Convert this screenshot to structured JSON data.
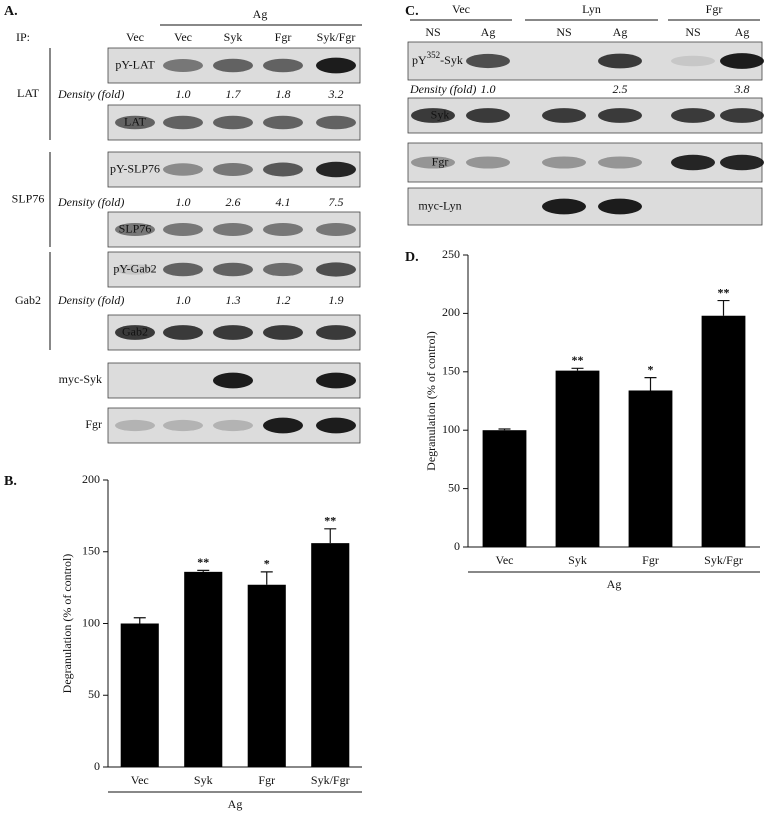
{
  "panel_a": {
    "label": "A.",
    "ip_label": "IP:",
    "treatment": "Ag",
    "lanes": [
      "Vec",
      "Vec",
      "Syk",
      "Fgr",
      "Syk/Fgr"
    ],
    "groups": [
      {
        "name": "LAT",
        "phospho_blot": "pY-LAT",
        "density_label": "Density (fold)",
        "densities": [
          "1.0",
          "1.7",
          "1.8",
          "3.2"
        ],
        "total_blot": "LAT"
      },
      {
        "name": "SLP76",
        "phospho_blot": "pY-SLP76",
        "density_label": "Density (fold)",
        "densities": [
          "1.0",
          "2.6",
          "4.1",
          "7.5"
        ],
        "total_blot": "SLP76"
      },
      {
        "name": "Gab2",
        "phospho_blot": "pY-Gab2",
        "density_label": "Density (fold)",
        "densities": [
          "1.0",
          "1.3",
          "1.2",
          "1.9"
        ],
        "total_blot": "Gab2"
      }
    ],
    "other_blots": [
      "myc-Syk",
      "Fgr"
    ]
  },
  "panel_c": {
    "label": "C.",
    "lane_groups": [
      {
        "name": "Vec",
        "lanes": [
          "NS",
          "Ag"
        ]
      },
      {
        "name": "Lyn",
        "lanes": [
          "NS",
          "Ag"
        ]
      },
      {
        "name": "Fgr",
        "lanes": [
          "NS",
          "Ag"
        ]
      }
    ],
    "phospho_blot": {
      "base": "pY",
      "sup": "352",
      "rest": "-Syk"
    },
    "density_label": "Density (fold)",
    "densities": [
      "1.0",
      "2.5",
      "3.8"
    ],
    "other_blots": [
      "Syk",
      "Fgr",
      "myc-Lyn"
    ]
  },
  "chart_data": [
    {
      "type": "bar",
      "panel_label": "B.",
      "y_label": "Degranulation (% of control)",
      "x_label": "Ag",
      "categories": [
        "Vec",
        "Syk",
        "Fgr",
        "Syk/Fgr"
      ],
      "values": [
        100,
        136,
        127,
        156
      ],
      "errors": [
        4,
        1,
        9,
        10
      ],
      "annotations": [
        null,
        "**",
        "*",
        "**"
      ],
      "color": "#000000",
      "ylim": [
        0,
        200
      ],
      "yticks": [
        0,
        50,
        100,
        150,
        200
      ]
    },
    {
      "type": "bar",
      "panel_label": "D.",
      "y_label": "Degranulation (% of control)",
      "x_label": "Ag",
      "categories": [
        "Vec",
        "Syk",
        "Fgr",
        "Syk/Fgr"
      ],
      "values": [
        100,
        151,
        134,
        198
      ],
      "errors": [
        1,
        2,
        11,
        13
      ],
      "annotations": [
        null,
        "**",
        "*",
        "**"
      ],
      "color": "#000000",
      "ylim": [
        0,
        250
      ],
      "yticks": [
        0,
        50,
        100,
        150,
        200,
        250
      ]
    }
  ]
}
